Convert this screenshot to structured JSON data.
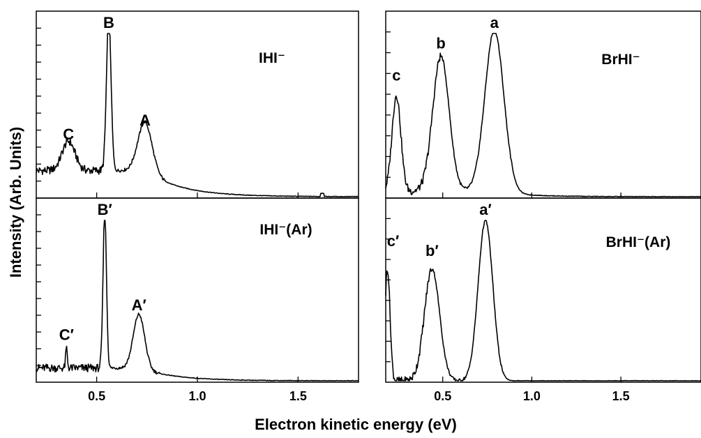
{
  "figure": {
    "xlabel": "Electron kinetic energy (eV)",
    "ylabel": "Intensity (Arb. Units)"
  },
  "chart_data": [
    {
      "type": "line",
      "panel": "left-top",
      "species_label": "IHI⁻",
      "xlim": [
        0.2,
        1.8
      ],
      "x_ticks": [
        0.5,
        1.0,
        1.5
      ],
      "x_tick_labels": [
        "0.5",
        "1.0",
        "1.5"
      ],
      "ylim": [
        0,
        1
      ],
      "y_tick_count": 11,
      "peaks": [
        {
          "label": "C",
          "x": 0.36,
          "y": 0.23
        },
        {
          "label": "B",
          "x": 0.56,
          "y": 1.0
        },
        {
          "label": "A",
          "x": 0.74,
          "y": 0.35
        }
      ],
      "baseline": 0.1,
      "tail": {
        "x": 1.62,
        "y": 0.02
      },
      "show_x_tick_labels": false
    },
    {
      "type": "line",
      "panel": "left-bottom",
      "species_label": "IHI⁻(Ar)",
      "xlim": [
        0.2,
        1.8
      ],
      "x_ticks": [
        0.5,
        1.0,
        1.5
      ],
      "x_tick_labels": [
        "0.5",
        "1.0",
        "1.5"
      ],
      "ylim": [
        0,
        1
      ],
      "y_tick_count": 11,
      "peaks": [
        {
          "label": "C′",
          "x": 0.35,
          "y": 0.15
        },
        {
          "label": "B′",
          "x": 0.54,
          "y": 1.0
        },
        {
          "label": "A′",
          "x": 0.71,
          "y": 0.36
        }
      ],
      "baseline": 0.05,
      "show_x_tick_labels": true
    },
    {
      "type": "line",
      "panel": "right-top",
      "species_label": "BrHI⁻",
      "xlim": [
        0.18,
        1.95
      ],
      "x_ticks": [
        0.5,
        1.0,
        1.5
      ],
      "x_tick_labels": [
        "0.5",
        "1.0",
        "1.5"
      ],
      "ylim": [
        0,
        1
      ],
      "y_tick_count": 9,
      "peaks": [
        {
          "label": "c",
          "x": 0.24,
          "y": 0.6
        },
        {
          "label": "b",
          "x": 0.49,
          "y": 0.84
        },
        {
          "label": "a",
          "x": 0.79,
          "y": 1.0
        }
      ],
      "baseline": 0.02,
      "show_x_tick_labels": false
    },
    {
      "type": "line",
      "panel": "right-bottom",
      "species_label": "BrHI⁻(Ar)",
      "xlim": [
        0.18,
        1.95
      ],
      "x_ticks": [
        0.5,
        1.0,
        1.5
      ],
      "x_tick_labels": [
        "0.5",
        "1.0",
        "1.5"
      ],
      "ylim": [
        0,
        1
      ],
      "y_tick_count": 9,
      "peaks": [
        {
          "label": "c′",
          "x": 0.19,
          "y": 0.7
        },
        {
          "label": "b′",
          "x": 0.44,
          "y": 0.7
        },
        {
          "label": "a′",
          "x": 0.74,
          "y": 1.0
        }
      ],
      "baseline": 0.0,
      "show_x_tick_labels": true
    }
  ]
}
